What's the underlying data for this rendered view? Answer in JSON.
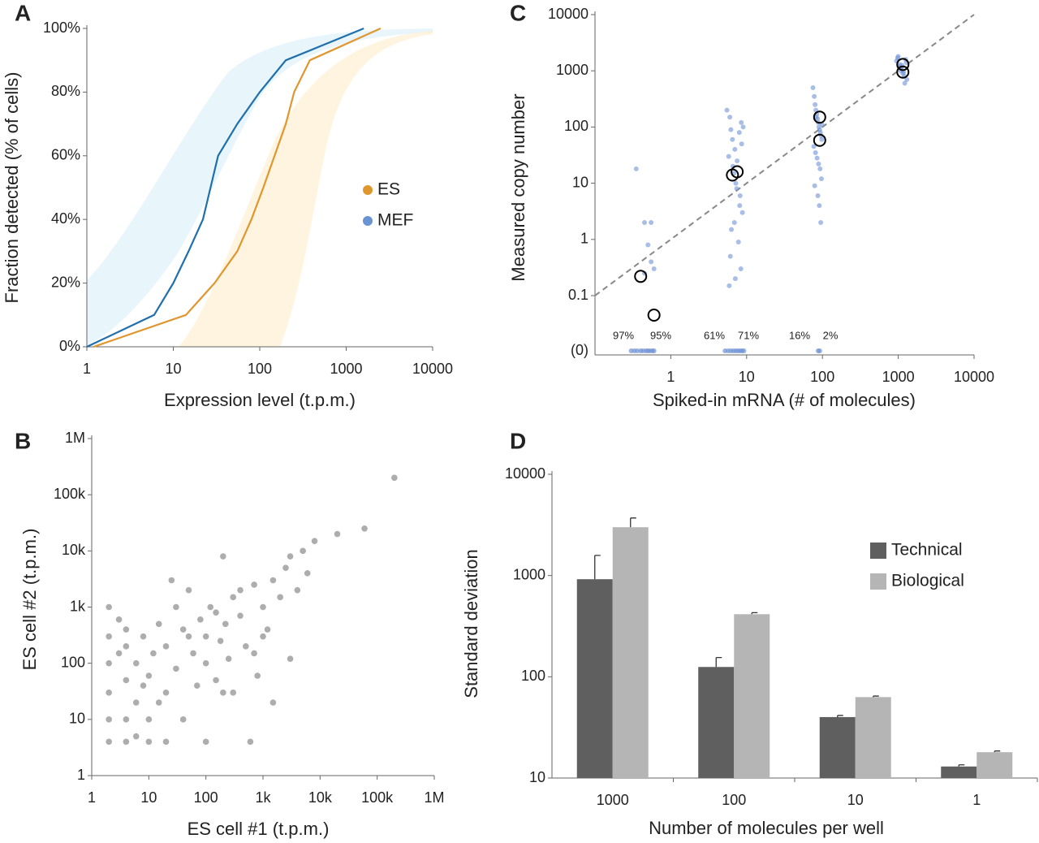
{
  "chart_data": [
    {
      "type": "line",
      "panel": "A",
      "x_label": "Expression level (t.p.m.)",
      "y_label": "Fraction detected (% of cells)",
      "log_x": true,
      "xlim": [
        1,
        10000
      ],
      "xticks": [
        1,
        10,
        100,
        1000,
        10000
      ],
      "ylim": [
        0,
        100
      ],
      "yticks": [
        {
          "value": 0,
          "label": "0%"
        },
        {
          "value": 20,
          "label": "20%"
        },
        {
          "value": 40,
          "label": "40%"
        },
        {
          "value": 60,
          "label": "60%"
        },
        {
          "value": 80,
          "label": "80%"
        },
        {
          "value": 100,
          "label": "100%"
        }
      ],
      "series": [
        {
          "name": "ES",
          "color": "#e0962e",
          "x": [
            1.2,
            14,
            30,
            55,
            80,
            110,
            200,
            250,
            380,
            2500
          ],
          "values": [
            0,
            10,
            20,
            30,
            40,
            50,
            70,
            80,
            90,
            100
          ]
        },
        {
          "name": "MEF",
          "color": "#1f6fad",
          "legend_color": "#6a93d4",
          "x": [
            1,
            6,
            10,
            15,
            22,
            33,
            55,
            100,
            200,
            1600
          ],
          "values": [
            0,
            10,
            20,
            30,
            40,
            60,
            70,
            80,
            90,
            100
          ]
        }
      ]
    },
    {
      "type": "scatter",
      "panel": "B",
      "x_label": "ES cell #1 (t.p.m.)",
      "y_label": "ES cell #2 (t.p.m.)",
      "color": "#8a8a8a",
      "log_x": true,
      "log_y": true,
      "xlim": [
        1,
        1000000
      ],
      "ylim": [
        1,
        1000000
      ],
      "xticks": [
        1,
        10,
        100,
        {
          "value": 1000,
          "label": "1k"
        },
        {
          "value": 10000,
          "label": "10k"
        },
        {
          "value": 100000,
          "label": "100k"
        },
        {
          "value": 1000000,
          "label": "1M"
        }
      ],
      "yticks": [
        1,
        10,
        100,
        {
          "value": 1000,
          "label": "1k"
        },
        {
          "value": 10000,
          "label": "10k"
        },
        {
          "value": 100000,
          "label": "100k"
        },
        {
          "value": 1000000,
          "label": "1M"
        }
      ],
      "x": [
        2,
        2,
        2,
        2,
        2,
        2,
        4,
        4,
        4,
        4,
        4,
        6,
        6,
        6,
        8,
        10,
        10,
        10,
        12,
        15,
        20,
        20,
        20,
        25,
        30,
        40,
        40,
        50,
        60,
        70,
        80,
        100,
        100,
        100,
        120,
        150,
        180,
        200,
        220,
        250,
        300,
        300,
        400,
        500,
        600,
        700,
        800,
        1000,
        1200,
        1500,
        2000,
        2500,
        3000,
        4000,
        5000,
        6000,
        8000,
        1500,
        3000,
        20000,
        60000,
        200000,
        30,
        50,
        150,
        400,
        1000,
        8,
        15,
        3,
        3,
        200,
        700
      ],
      "values": [
        4,
        10,
        30,
        100,
        300,
        1000,
        4,
        10,
        50,
        200,
        400,
        5,
        20,
        100,
        300,
        4,
        10,
        60,
        150,
        500,
        4,
        30,
        200,
        3000,
        80,
        10,
        400,
        2000,
        150,
        40,
        600,
        4,
        100,
        300,
        1000,
        50,
        250,
        8000,
        500,
        120,
        1500,
        30,
        700,
        200,
        4,
        2500,
        60,
        1000,
        400,
        3000,
        1500,
        5000,
        8000,
        2000,
        10000,
        4000,
        15000,
        20,
        120,
        20000,
        25000,
        200000,
        1000,
        300,
        800,
        2000,
        300,
        40,
        20,
        150,
        600,
        30,
        150
      ]
    },
    {
      "type": "scatter",
      "panel": "C",
      "x_label": "Spiked-in mRNA (# of molecules)",
      "y_label": "Measured copy number",
      "log_x": true,
      "log_y": true,
      "identity_line": true,
      "color": "#6f93d6",
      "mean_color": "#000000",
      "xlim": [
        0.1,
        10000
      ],
      "xticks": [
        1,
        10,
        100,
        1000,
        10000
      ],
      "ylim": [
        0.1,
        10000
      ],
      "yticks": [
        0.1,
        1,
        10,
        100,
        1000,
        10000
      ],
      "zero_tick_label": "(0)",
      "x": [
        0.35,
        0.45,
        0.55,
        0.5,
        0.55,
        0.6,
        0.45,
        5.5,
        6,
        6.2,
        6.5,
        7,
        7.5,
        8,
        8.5,
        9,
        5.8,
        6.8,
        7.2,
        8.2,
        8.8,
        6.3,
        7.8,
        6.1,
        8.4,
        7.1,
        5.9,
        8.6,
        6.6,
        7.4,
        8.1,
        6.9,
        75,
        78,
        80,
        82,
        84,
        86,
        88,
        90,
        92,
        94,
        96,
        98,
        77,
        81,
        85,
        89,
        93,
        97,
        79,
        87,
        91,
        95,
        83,
        99,
        950,
        1000,
        1050,
        1100,
        1150,
        1200,
        1250,
        1300,
        1020,
        1080,
        1180,
        1280,
        980,
        1220,
        1120
      ],
      "values": [
        18,
        2,
        2,
        0.8,
        0.4,
        0.3,
        0.25,
        200,
        150,
        90,
        60,
        40,
        25,
        80,
        120,
        100,
        30,
        15,
        10,
        6,
        3,
        1.5,
        0.9,
        0.5,
        0.3,
        0.2,
        0.15,
        50,
        20,
        8,
        4,
        2,
        500,
        350,
        250,
        200,
        170,
        140,
        120,
        100,
        90,
        80,
        70,
        60,
        45,
        35,
        28,
        22,
        18,
        12,
        9,
        6,
        4,
        2,
        150,
        110,
        1500,
        1800,
        1300,
        1100,
        900,
        800,
        1600,
        700,
        1200,
        1000,
        950,
        1400,
        1700,
        600,
        1250
      ],
      "zero_x": [
        0.3,
        0.33,
        0.36,
        0.4,
        0.43,
        0.47,
        0.5,
        0.53,
        0.57,
        0.6,
        5.2,
        5.7,
        6.2,
        6.7,
        7.2,
        7.7,
        8.2,
        8.7,
        9.2,
        88,
        92
      ],
      "zero_values": [
        0,
        0,
        0,
        0,
        0,
        0,
        0,
        0,
        0,
        0,
        0,
        0,
        0,
        0,
        0,
        0,
        0,
        0,
        0,
        0,
        0
      ],
      "mean_x": [
        0.4,
        0.6,
        6.5,
        7.5,
        92,
        92,
        1150,
        1150
      ],
      "mean_values": [
        0.22,
        0.045,
        14,
        16,
        150,
        58,
        1300,
        950
      ],
      "annotations": [
        "97%",
        "95%",
        "61%",
        "71%",
        "16%",
        "2%"
      ]
    },
    {
      "type": "bar",
      "panel": "D",
      "x_label": "Number of molecules per well",
      "y_label": "Standard deviation",
      "log_y": true,
      "ylim": [
        10,
        10000
      ],
      "yticks": [
        10,
        100,
        1000,
        10000
      ],
      "categories": [
        "1000",
        "100",
        "10",
        "1"
      ],
      "series": [
        {
          "name": "Technical",
          "color": "#5f5f5f",
          "values": [
            920,
            125,
            40,
            13
          ],
          "errors": [
            660,
            30,
            1.5,
            0.5
          ]
        },
        {
          "name": "Biological",
          "color": "#b5b5b5",
          "values": [
            3000,
            415,
            63,
            18
          ],
          "errors": [
            700,
            15,
            1.5,
            0.5
          ]
        }
      ]
    }
  ]
}
